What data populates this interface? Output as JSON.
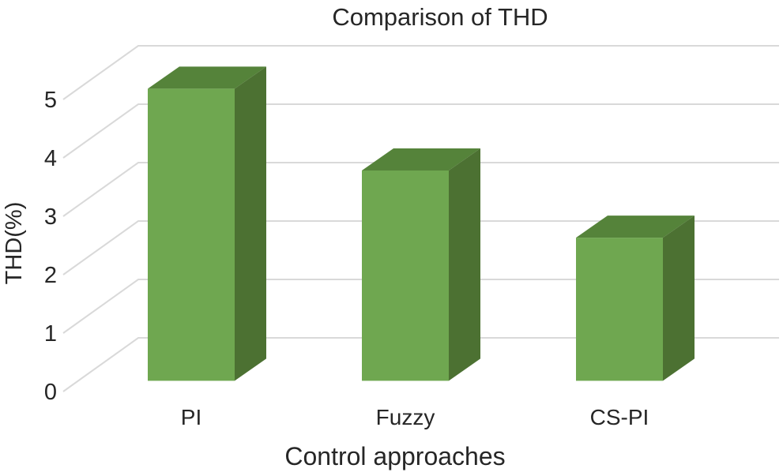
{
  "chart_data": {
    "type": "bar",
    "style": "3d-column",
    "title": "Comparison of THD",
    "xlabel": "Control approaches",
    "ylabel": "THD(%)",
    "categories": [
      "PI",
      "Fuzzy",
      "CS-PI"
    ],
    "values": [
      5.0,
      3.6,
      2.45
    ],
    "yticks": [
      0,
      1,
      2,
      3,
      4,
      5
    ],
    "ylim": [
      0,
      5
    ],
    "grid": "on",
    "legend": "none",
    "colors": {
      "bar_front": "#6FA750",
      "bar_side": "#4C7132",
      "bar_top": "#55833A",
      "gridline": "#D9D9D9",
      "text": "#262626"
    }
  }
}
